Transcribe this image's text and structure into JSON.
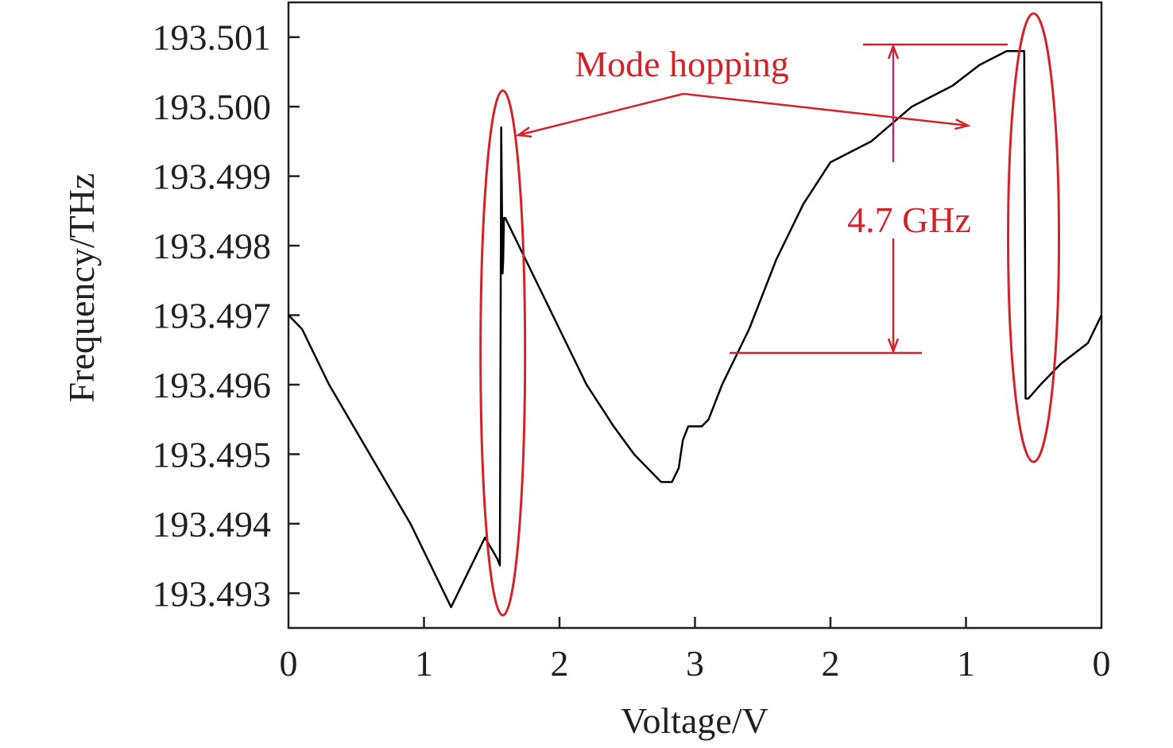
{
  "chart_data": {
    "type": "line",
    "title": "",
    "xlabel": "Voltage/V",
    "ylabel": "Frequency/THz",
    "x_tick_labels": [
      "0",
      "1",
      "2",
      "3",
      "2",
      "1",
      "0"
    ],
    "x_tick_positions": [
      0,
      1,
      2,
      3,
      4,
      5,
      6
    ],
    "xlim": [
      0,
      6
    ],
    "y_tick_labels": [
      "193.501",
      "193.500",
      "193.499",
      "193.498",
      "193.497",
      "193.496",
      "193.495",
      "193.494",
      "193.493"
    ],
    "y_ticks": [
      193.501,
      193.5,
      193.499,
      193.498,
      193.497,
      193.496,
      193.495,
      193.494,
      193.493
    ],
    "ylim": [
      193.4925,
      193.5015
    ],
    "grid": false,
    "series": [
      {
        "x": [
          0.0,
          0.1,
          0.3,
          0.6,
          0.9,
          1.2,
          1.45,
          1.54,
          1.56,
          1.57,
          1.58,
          1.585,
          1.59,
          1.6,
          1.65,
          1.8,
          2.0,
          2.2,
          2.4,
          2.55,
          2.65,
          2.75,
          2.83,
          2.88,
          2.91,
          2.95,
          3.0,
          3.05,
          3.1,
          3.2,
          3.4,
          3.6,
          3.8,
          4.0,
          4.3,
          4.6,
          4.9,
          5.1,
          5.3,
          5.4,
          5.43,
          5.44,
          5.46,
          5.55,
          5.7,
          5.9,
          6.0
        ],
        "y": [
          193.497,
          193.4968,
          193.496,
          193.495,
          193.494,
          193.4928,
          193.4938,
          193.4935,
          193.4934,
          193.4997,
          193.4976,
          193.4978,
          193.4984,
          193.4984,
          193.4982,
          193.4976,
          193.4968,
          193.496,
          193.4954,
          193.495,
          193.4948,
          193.4946,
          193.4946,
          193.4948,
          193.4952,
          193.4954,
          193.4954,
          193.4954,
          193.4955,
          193.496,
          193.4968,
          193.4978,
          193.4986,
          193.4992,
          193.4995,
          193.5,
          193.5003,
          193.5006,
          193.5008,
          193.5008,
          193.5008,
          193.4958,
          193.4958,
          193.496,
          193.4963,
          193.4966,
          193.497
        ]
      }
    ],
    "annotations": {
      "mode_hopping_label": "Mode hopping",
      "delta_label": "4.7 GHz",
      "annotation_color": "#d2232a"
    }
  }
}
